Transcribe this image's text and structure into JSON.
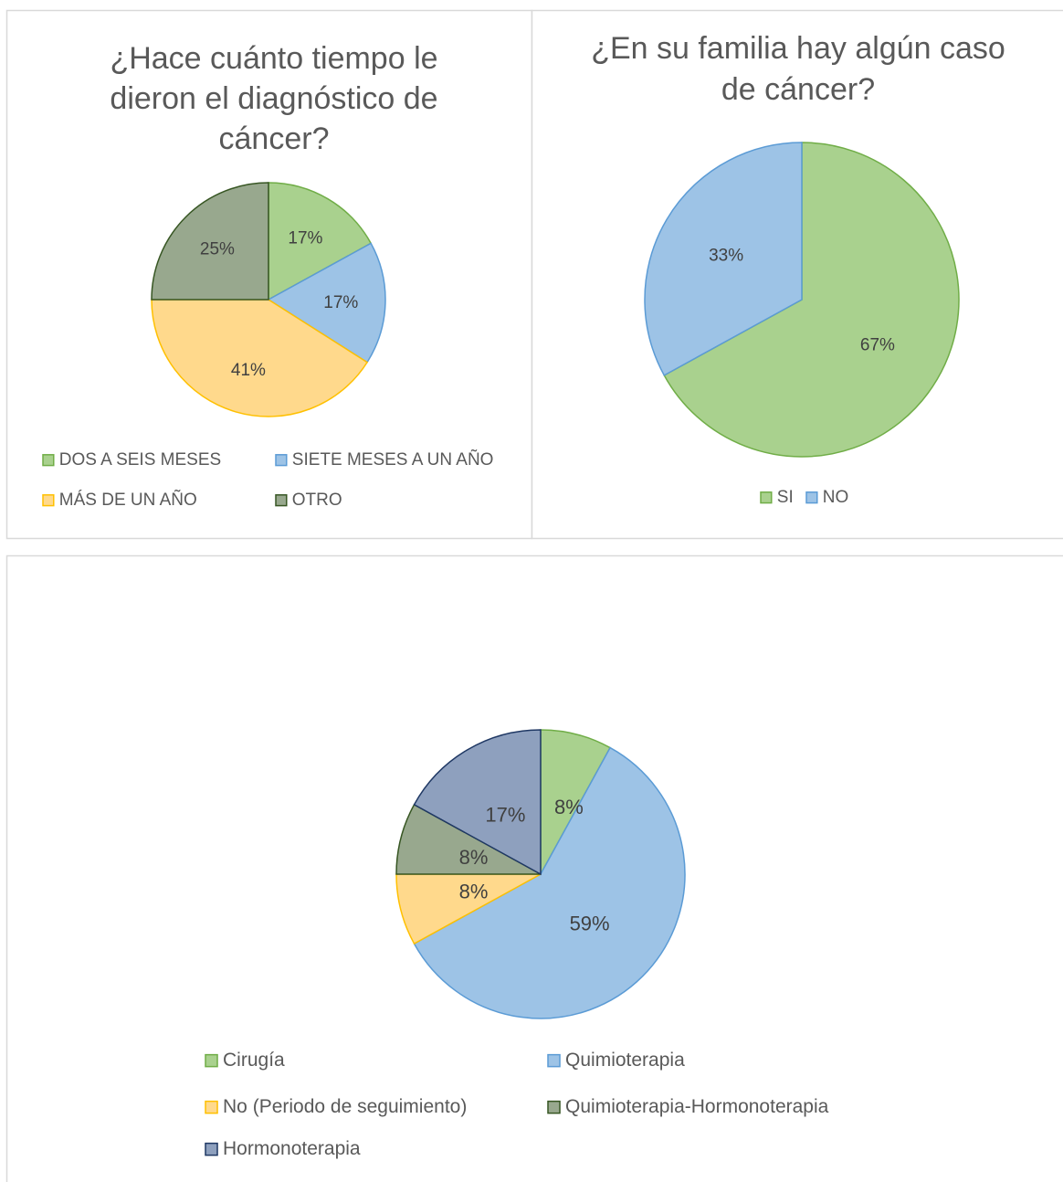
{
  "chart_data": [
    {
      "type": "pie",
      "title": "¿Hace cuánto tiempo le dieron el diagnóstico de cáncer?",
      "title_lines": [
        "¿Hace cuánto tiempo le",
        "dieron el diagnóstico de",
        "cáncer?"
      ],
      "legend_position": "bottom",
      "slices": [
        {
          "label": "DOS A SEIS MESES",
          "value": 17,
          "display": "17%",
          "color": "#A9D18E",
          "stroke": "#70AD47"
        },
        {
          "label": "SIETE MESES A UN AÑO",
          "value": 17,
          "display": "17%",
          "color": "#9DC3E6",
          "stroke": "#5B9BD5"
        },
        {
          "label": "MÁS DE UN AÑO",
          "value": 41,
          "display": "41%",
          "color": "#FFD98C",
          "stroke": "#FFC000"
        },
        {
          "label": "OTRO",
          "value": 25,
          "display": "25%",
          "color": "#98A88E",
          "stroke": "#375623"
        }
      ]
    },
    {
      "type": "pie",
      "title": "¿En su familia hay algún caso de cáncer?",
      "title_lines": [
        "¿En su familia hay algún caso",
        "de cáncer?"
      ],
      "legend_position": "bottom",
      "slices": [
        {
          "label": "SI",
          "value": 67,
          "display": "67%",
          "color": "#A9D18E",
          "stroke": "#70AD47"
        },
        {
          "label": "NO",
          "value": 33,
          "display": "33%",
          "color": "#9DC3E6",
          "stroke": "#5B9BD5"
        }
      ]
    },
    {
      "type": "pie",
      "title": "",
      "title_lines": [],
      "legend_position": "bottom",
      "slices": [
        {
          "label": "Cirugía",
          "value": 8,
          "display": "8%",
          "color": "#A9D18E",
          "stroke": "#70AD47"
        },
        {
          "label": "Quimioterapia",
          "value": 59,
          "display": "59%",
          "color": "#9DC3E6",
          "stroke": "#5B9BD5"
        },
        {
          "label": "No (Periodo de seguimiento)",
          "value": 8,
          "display": "8%",
          "color": "#FFD98C",
          "stroke": "#FFC000"
        },
        {
          "label": "Quimioterapia-Hormonoterapia",
          "value": 8,
          "display": "8%",
          "color": "#98A88E",
          "stroke": "#375623"
        },
        {
          "label": "Hormonoterapia",
          "value": 17,
          "display": "17%",
          "color": "#8EA0BE",
          "stroke": "#1F3864"
        }
      ]
    }
  ],
  "colors": {
    "panel_border": "#D9D9D9",
    "text": "#595959"
  }
}
